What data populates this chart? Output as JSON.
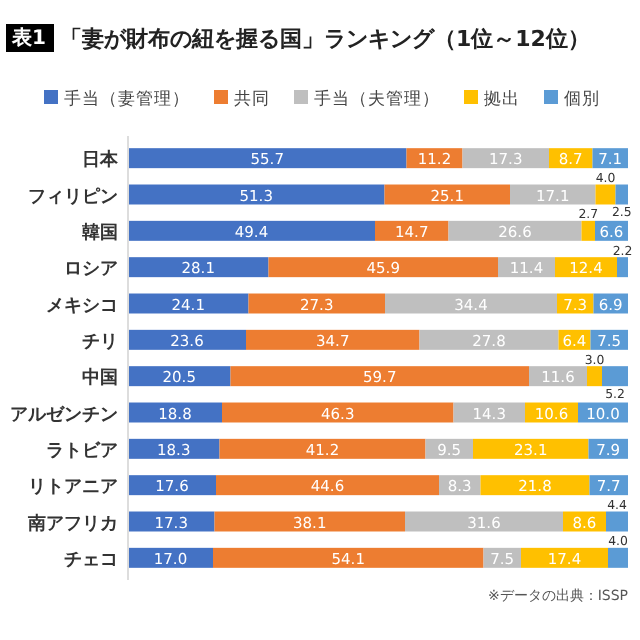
{
  "chart_data": {
    "type": "bar",
    "orientation": "horizontal",
    "stacked": true,
    "legend": "top left",
    "title": "「妻が財布の紐を握る国」ランキング（1位～12位）",
    "annotations": [
      "表1",
      "※データの出典：ISSP"
    ],
    "categories": [
      "日本",
      "フィリピン",
      "韓国",
      "ロシア",
      "メキシコ",
      "チリ",
      "中国",
      "アルゼンチン",
      "ラトビア",
      "リトアニア",
      "南アフリカ",
      "チェコ"
    ],
    "series": [
      {
        "name": "手当（妻管理）",
        "color": "#4472c4",
        "values": [
          55.7,
          51.3,
          49.4,
          28.1,
          24.1,
          23.6,
          20.5,
          18.8,
          18.3,
          17.6,
          17.3,
          17.0
        ],
        "value_labels": [
          "55.7",
          "51.3",
          "49.4",
          "28.1",
          "24.1",
          "23.6",
          "20.5",
          "18.8",
          "18.3",
          "17.6",
          "17.3",
          "17.0"
        ]
      },
      {
        "name": "共同",
        "color": "#ed7d31",
        "values": [
          11.2,
          25.1,
          14.7,
          45.9,
          27.3,
          34.7,
          59.7,
          46.3,
          41.2,
          44.6,
          38.1,
          54.1
        ],
        "value_labels": [
          "11.2",
          "25.1",
          "14.7",
          "45.9",
          "27.3",
          "34.7",
          "59.7",
          "46.3",
          "41.2",
          "44.6",
          "38.1",
          "54.1"
        ]
      },
      {
        "name": "手当（夫管理）",
        "color": "#bfbfbf",
        "values": [
          17.3,
          17.1,
          26.6,
          11.4,
          34.4,
          27.8,
          11.6,
          14.3,
          9.5,
          8.3,
          31.6,
          7.5
        ],
        "value_labels": [
          "17.3",
          "17.1",
          "26.6",
          "11.4",
          "34.4",
          "27.8",
          "11.6",
          "14.3",
          "9.5",
          "8.3",
          "31.6",
          "7.5"
        ]
      },
      {
        "name": "拠出",
        "color": "#ffc000",
        "values": [
          8.7,
          4.0,
          2.7,
          12.4,
          7.3,
          6.4,
          3.0,
          10.6,
          23.1,
          21.8,
          8.6,
          17.4
        ],
        "value_labels": [
          "8.7",
          "4.0",
          "2.7",
          "12.4",
          "7.3",
          "6.4",
          "3.0",
          "10.6",
          "23.1",
          "21.8",
          "8.6",
          "17.4"
        ]
      },
      {
        "name": "個別",
        "color": "#5b9bd5",
        "values": [
          7.1,
          2.5,
          6.6,
          2.2,
          6.9,
          7.5,
          5.2,
          10.0,
          7.9,
          7.7,
          4.4,
          4.0
        ],
        "value_labels": [
          "7.1",
          "2.5",
          "6.6",
          "2.2",
          "6.9",
          "7.5",
          "5.2",
          "10.0",
          "7.9",
          "7.7",
          "4.4",
          "4.0"
        ]
      }
    ]
  }
}
